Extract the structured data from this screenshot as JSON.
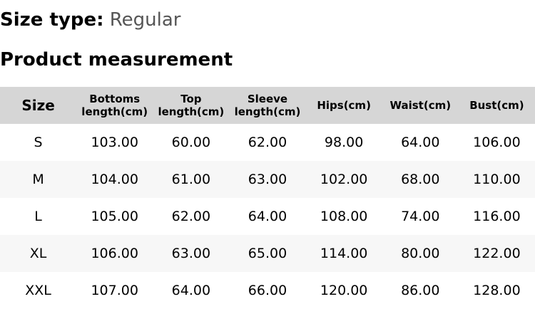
{
  "size_type": {
    "label": "Size type:",
    "value": "Regular"
  },
  "section_title": "Product measurement",
  "table": {
    "headers": [
      [
        "Size"
      ],
      [
        "Bottoms",
        "length(cm)"
      ],
      [
        "Top",
        "length(cm)"
      ],
      [
        "Sleeve",
        "length(cm)"
      ],
      [
        "Hips(cm)"
      ],
      [
        "Waist(cm)"
      ],
      [
        "Bust(cm)"
      ]
    ],
    "rows": [
      [
        "S",
        "103.00",
        "60.00",
        "62.00",
        "98.00",
        "64.00",
        "106.00"
      ],
      [
        "M",
        "104.00",
        "61.00",
        "63.00",
        "102.00",
        "68.00",
        "110.00"
      ],
      [
        "L",
        "105.00",
        "62.00",
        "64.00",
        "108.00",
        "74.00",
        "116.00"
      ],
      [
        "XL",
        "106.00",
        "63.00",
        "65.00",
        "114.00",
        "80.00",
        "122.00"
      ],
      [
        "XXL",
        "107.00",
        "64.00",
        "66.00",
        "120.00",
        "86.00",
        "128.00"
      ]
    ]
  },
  "colors": {
    "header_bg": "#d6d6d6",
    "alt_row_bg": "#f7f7f7",
    "value_text": "#555555"
  }
}
